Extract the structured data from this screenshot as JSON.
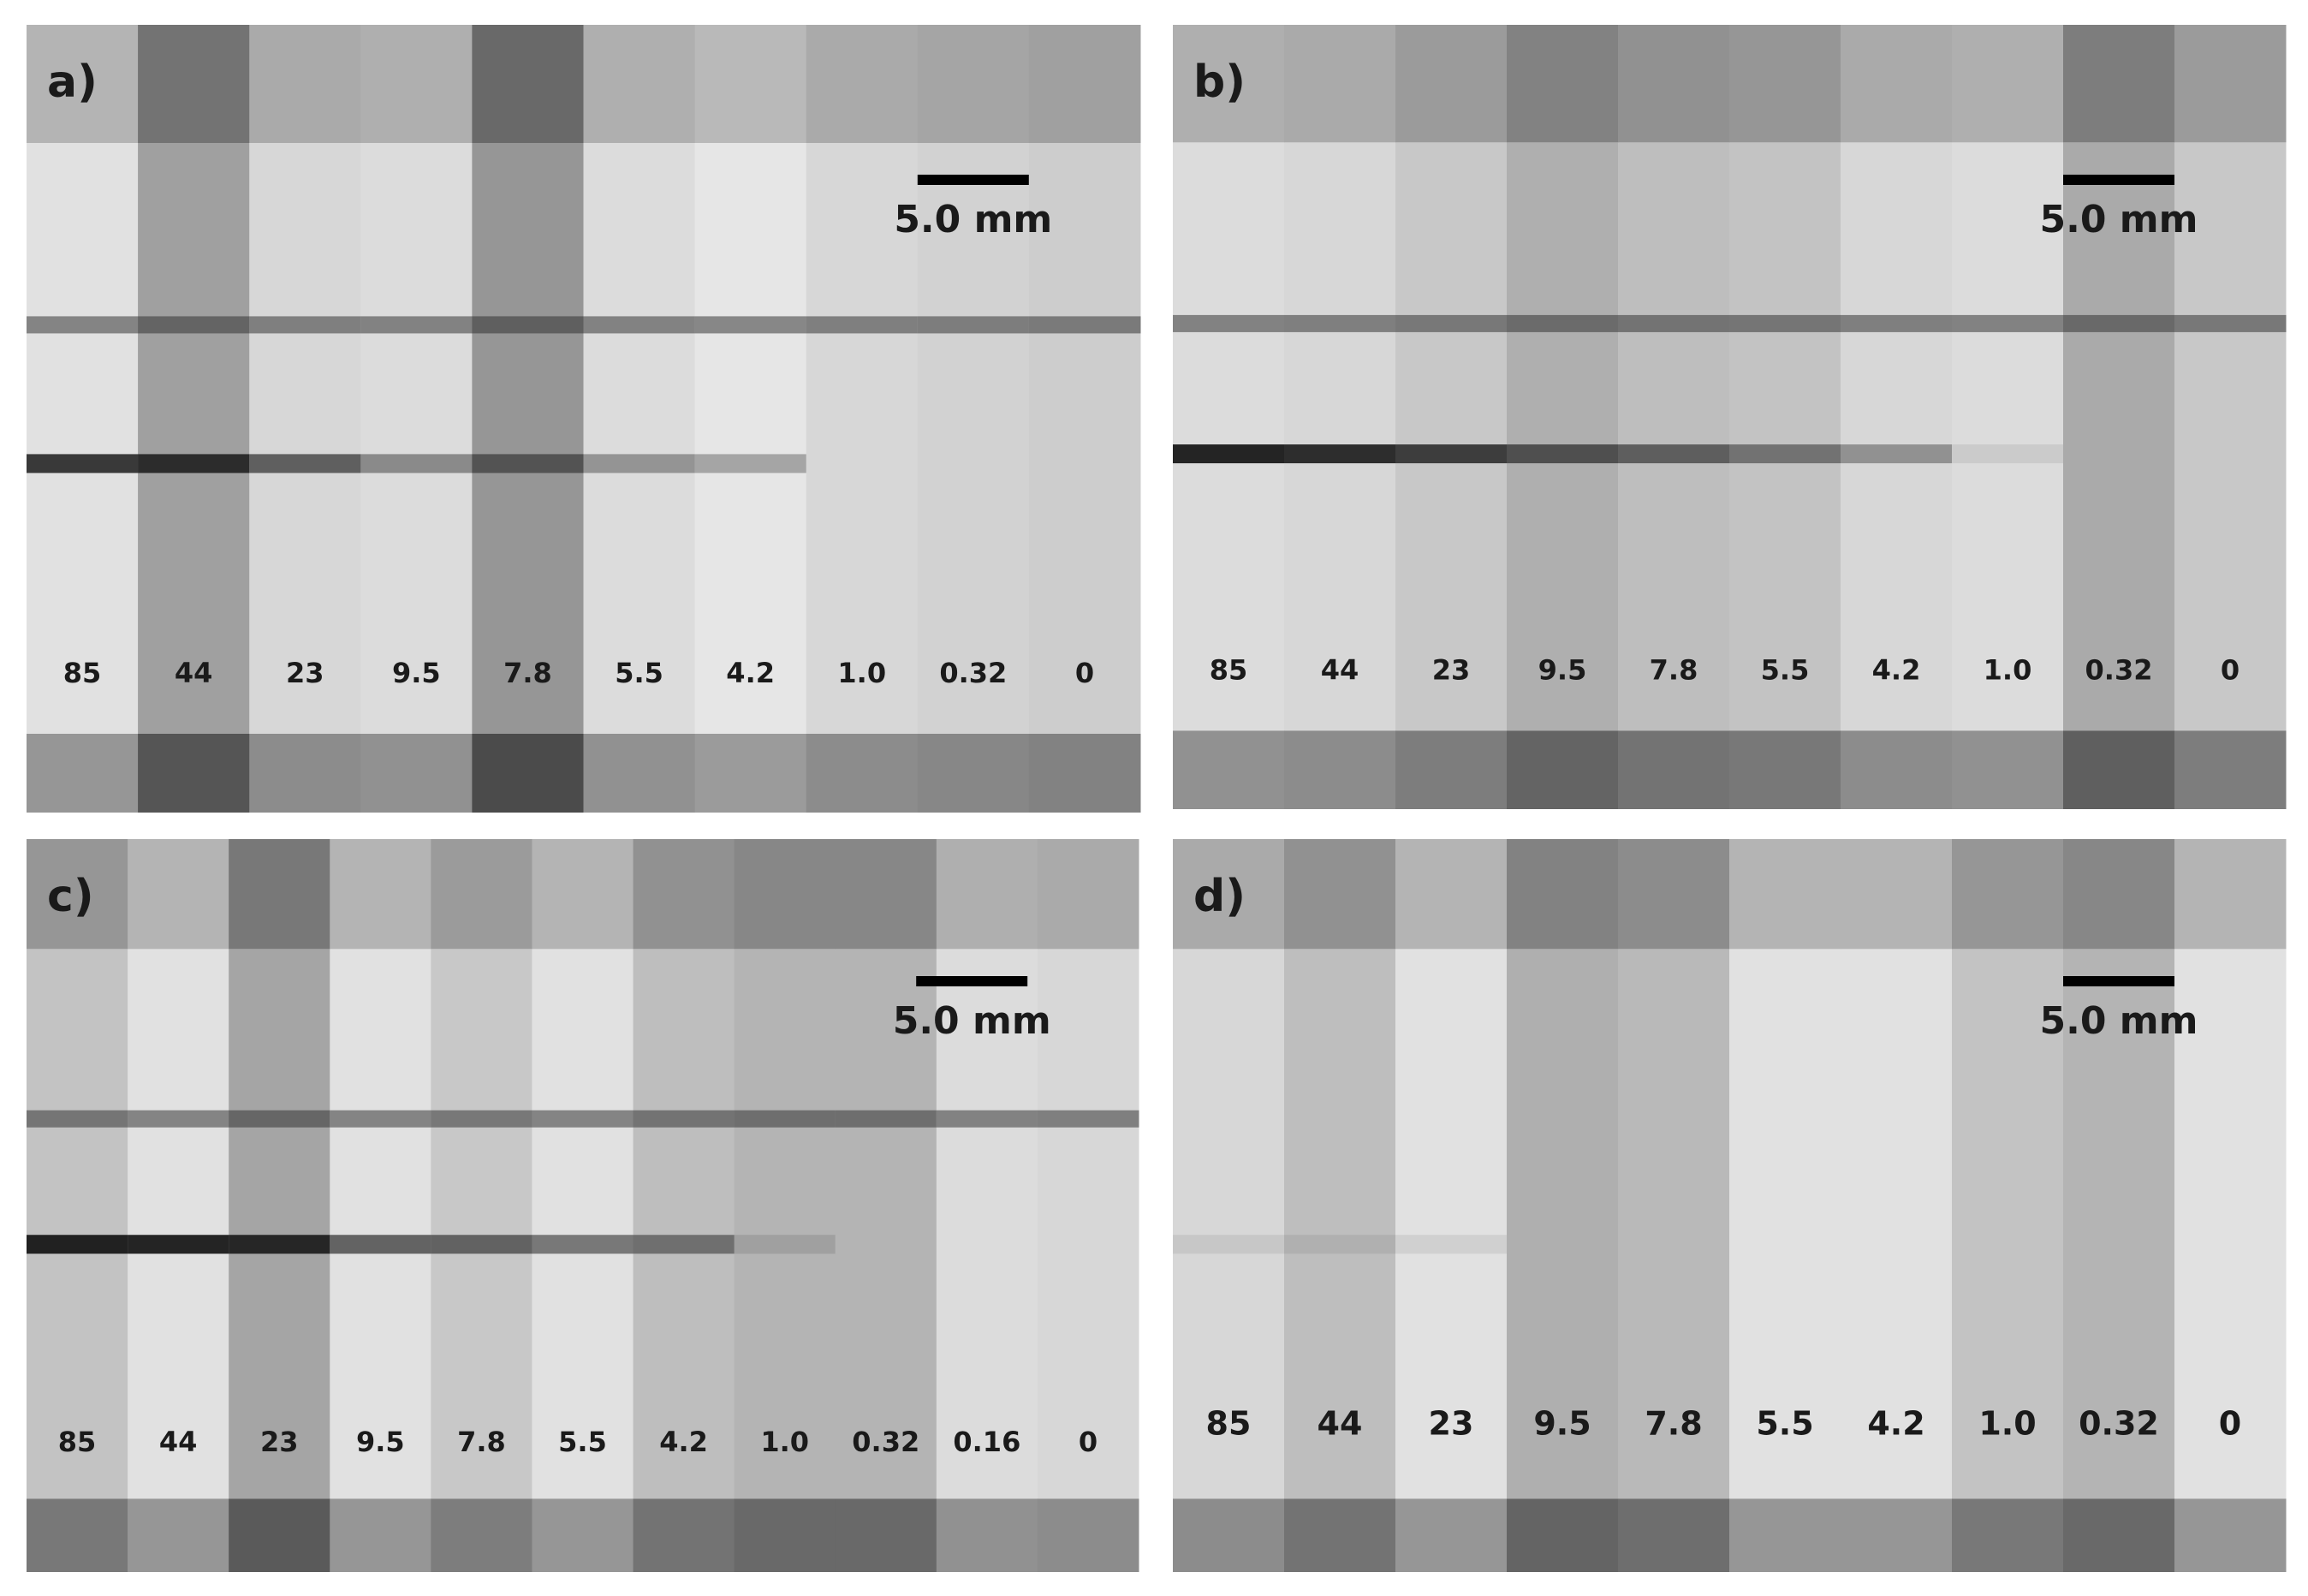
{
  "panels": [
    {
      "label": "a)",
      "scale_bar": "5.0 mm",
      "strips": [
        "85",
        "44",
        "23",
        "9.5",
        "7.8",
        "5.5",
        "4.2",
        "1.0",
        "0.32",
        "0"
      ]
    },
    {
      "label": "b)",
      "scale_bar": "5.0 mm",
      "strips": [
        "85",
        "44",
        "23",
        "9.5",
        "7.8",
        "5.5",
        "4.2",
        "1.0",
        "0.32",
        "0"
      ]
    },
    {
      "label": "c)",
      "scale_bar": "5.0 mm",
      "strips": [
        "85",
        "44",
        "23",
        "9.5",
        "7.8",
        "5.5",
        "4.2",
        "1.0",
        "0.32",
        "0.16",
        "0"
      ]
    },
    {
      "label": "d)",
      "scale_bar": "5.0 mm",
      "strips": [
        "85",
        "44",
        "23",
        "9.5",
        "7.8",
        "5.5",
        "4.2",
        "1.0",
        "0.32",
        "0"
      ]
    }
  ]
}
